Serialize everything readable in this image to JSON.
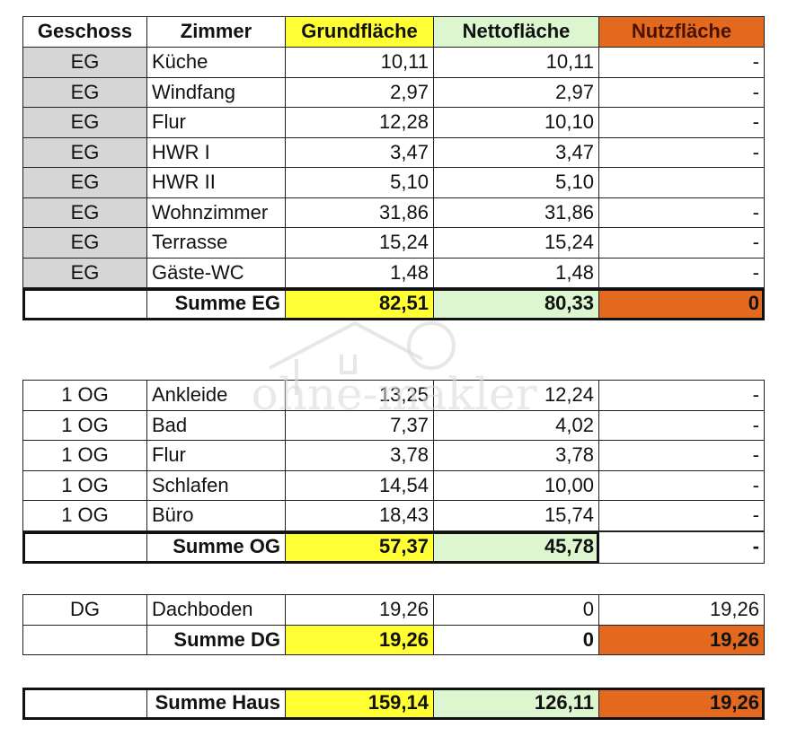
{
  "header": {
    "cells": [
      "Geschoss",
      "Zimmer",
      "Grundfläche",
      "Nettofläche",
      "Nutzfläche"
    ]
  },
  "eg": {
    "rows": [
      {
        "geschoss": "EG",
        "zimmer": "Küche",
        "grundflaeche": "10,11",
        "nettoflaeche": "10,11",
        "nutzflaeche": "-"
      },
      {
        "geschoss": "EG",
        "zimmer": "Windfang",
        "grundflaeche": "2,97",
        "nettoflaeche": "2,97",
        "nutzflaeche": "-"
      },
      {
        "geschoss": "EG",
        "zimmer": "Flur",
        "grundflaeche": "12,28",
        "nettoflaeche": "10,10",
        "nutzflaeche": "-"
      },
      {
        "geschoss": "EG",
        "zimmer": "HWR I",
        "grundflaeche": "3,47",
        "nettoflaeche": "3,47",
        "nutzflaeche": "-"
      },
      {
        "geschoss": "EG",
        "zimmer": "HWR II",
        "grundflaeche": "5,10",
        "nettoflaeche": "5,10"
      },
      {
        "geschoss": "EG",
        "zimmer": "Wohnzimmer",
        "grundflaeche": "31,86",
        "nettoflaeche": "31,86",
        "nutzflaeche": "-"
      },
      {
        "geschoss": "EG",
        "zimmer": "Terrasse",
        "grundflaeche": "15,24",
        "nettoflaeche": "15,24",
        "nutzflaeche": "-"
      },
      {
        "geschoss": "EG",
        "zimmer": "Gäste-WC",
        "grundflaeche": "1,48",
        "nettoflaeche": "1,48",
        "nutzflaeche": "-"
      }
    ],
    "summe": {
      "label": "Summe EG",
      "grundflaeche": "82,51",
      "nettoflaeche": "80,33",
      "nutzflaeche": "0"
    }
  },
  "og": {
    "rows": [
      {
        "geschoss": "1 OG",
        "zimmer": "Ankleide",
        "grundflaeche": "13,25",
        "nettoflaeche": "12,24",
        "nutzflaeche": "-"
      },
      {
        "geschoss": "1 OG",
        "zimmer": "Bad",
        "grundflaeche": "7,37",
        "nettoflaeche": "4,02",
        "nutzflaeche": "-"
      },
      {
        "geschoss": "1 OG",
        "zimmer": "Flur",
        "grundflaeche": "3,78",
        "nettoflaeche": "3,78",
        "nutzflaeche": "-"
      },
      {
        "geschoss": "1 OG",
        "zimmer": "Schlafen",
        "grundflaeche": "14,54",
        "nettoflaeche": "10,00",
        "nutzflaeche": "-"
      },
      {
        "geschoss": "1 OG",
        "zimmer": "Büro",
        "grundflaeche": "18,43",
        "nettoflaeche": "15,74",
        "nutzflaeche": "-"
      }
    ],
    "summe": {
      "label": "Summe OG",
      "grundflaeche": "57,37",
      "nettoflaeche": "45,78",
      "nutzflaeche": "-"
    }
  },
  "dg": {
    "rows": [
      {
        "geschoss": "DG",
        "zimmer": "Dachboden",
        "grundflaeche": "19,26",
        "nettoflaeche": "0",
        "nutzflaeche": "19,26"
      }
    ],
    "summe": {
      "label": "Summe DG",
      "grundflaeche": "19,26",
      "nettoflaeche": "0",
      "nutzflaeche": "19,26"
    }
  },
  "haus": {
    "summe": {
      "label": "Summe Haus",
      "grundflaeche": "159,14",
      "nettoflaeche": "126,11",
      "nutzflaeche": "19,26"
    }
  },
  "watermark": "ohne-makler"
}
